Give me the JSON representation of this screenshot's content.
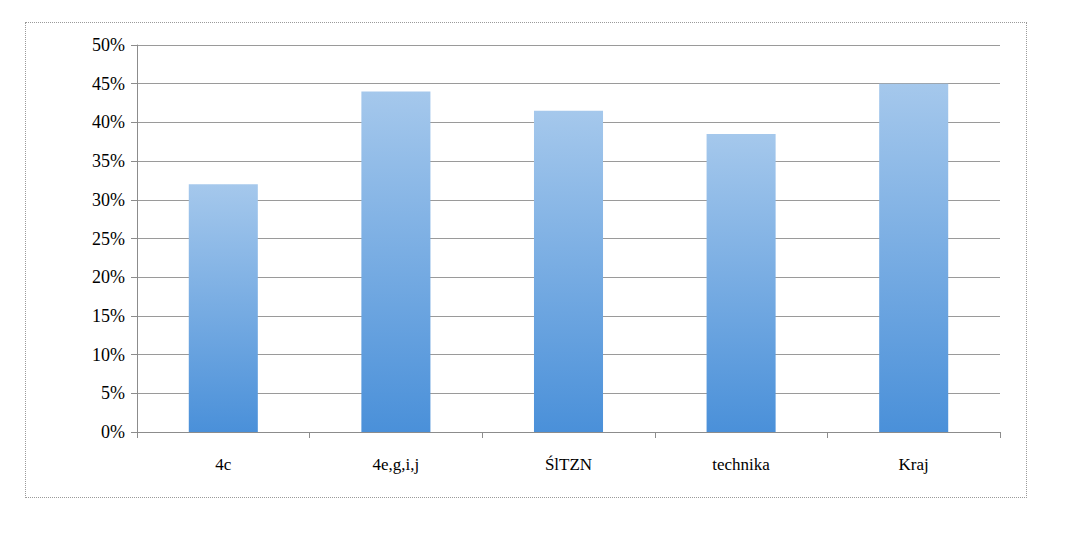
{
  "chart_data": {
    "type": "bar",
    "categories": [
      "4c",
      "4e,g,i,j",
      "ŚlTZN",
      "technika",
      "Kraj"
    ],
    "values": [
      32,
      44,
      41.5,
      38.5,
      45
    ],
    "color": "#4a90d9",
    "ylim": [
      0,
      50
    ],
    "yticks": [
      {
        "value": 0,
        "label": "0%"
      },
      {
        "value": 5,
        "label": "5%"
      },
      {
        "value": 10,
        "label": "10%"
      },
      {
        "value": 15,
        "label": "15%"
      },
      {
        "value": 20,
        "label": "20%"
      },
      {
        "value": 25,
        "label": "25%"
      },
      {
        "value": 30,
        "label": "30%"
      },
      {
        "value": 35,
        "label": "35%"
      },
      {
        "value": 40,
        "label": "40%"
      },
      {
        "value": 45,
        "label": "45%"
      },
      {
        "value": 50,
        "label": "50%"
      }
    ],
    "grid": true
  }
}
